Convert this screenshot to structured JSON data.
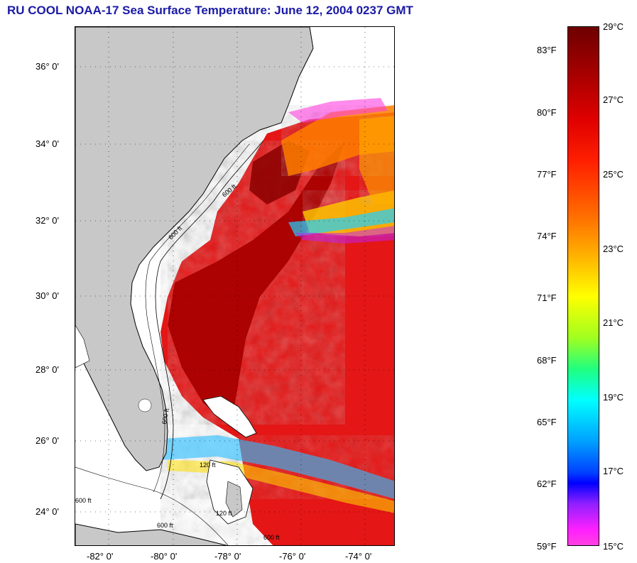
{
  "title": "RU COOL  NOAA-17  Sea Surface Temperature:  June 12, 2004 0237 GMT",
  "map": {
    "lat_labels": [
      "36° 0'",
      "34° 0'",
      "32° 0'",
      "30° 0'",
      "28° 0'",
      "26° 0'",
      "24° 0'"
    ],
    "lon_labels": [
      "-82° 0'",
      "-80° 0'",
      "-78° 0'",
      "-76° 0'",
      "-74° 0'"
    ],
    "contour_labels": [
      "600 ft",
      "600 ft",
      "600 ft",
      "600 ft",
      "120 ft",
      "120 ft",
      "600 ft",
      "600 ft"
    ],
    "colors": {
      "land": "#c8c8c8",
      "cloud": "#ffffff",
      "warm": "#e01010",
      "hot": "#b00000",
      "gulf_stream": "#d80808"
    }
  },
  "colorbar": {
    "fahrenheit_labels": [
      "83°F",
      "80°F",
      "77°F",
      "74°F",
      "71°F",
      "68°F",
      "65°F",
      "62°F",
      "59°F"
    ],
    "celsius_labels": [
      "29°C",
      "27°C",
      "25°C",
      "23°C",
      "21°C",
      "19°C",
      "17°C",
      "15°C"
    ]
  }
}
